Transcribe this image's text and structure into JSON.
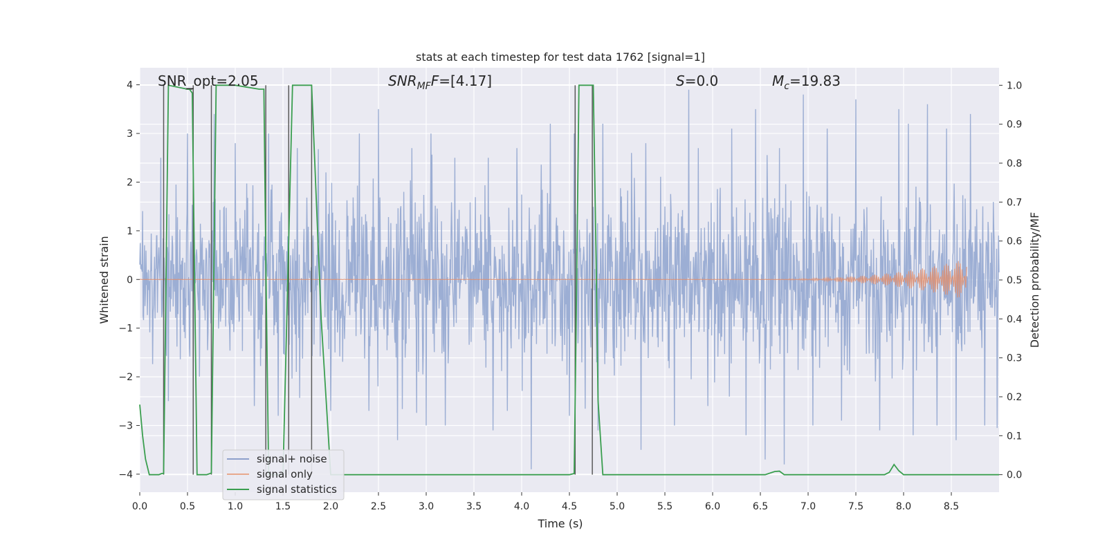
{
  "chart_data": {
    "type": "line",
    "title": "stats at each timestep for test data 1762 [signal=1]",
    "xlabel": "Time (s)",
    "ylabel_left": "Whitened strain",
    "ylabel_right": "Detection probability/MF",
    "xlim": [
      0.0,
      9.0
    ],
    "ylim_left": [
      -4.37,
      4.35
    ],
    "ylim_right": [
      -0.045,
      1.045
    ],
    "grid": true,
    "legend_position": "lower-left",
    "x_ticks": [
      0.0,
      0.5,
      1.0,
      1.5,
      2.0,
      2.5,
      3.0,
      3.5,
      4.0,
      4.5,
      5.0,
      5.5,
      6.0,
      6.5,
      7.0,
      7.5,
      8.0,
      8.5
    ],
    "x_tick_labels": [
      "0.0",
      "0.5",
      "1.0",
      "1.5",
      "2.0",
      "2.5",
      "3.0",
      "3.5",
      "4.0",
      "4.5",
      "5.0",
      "5.5",
      "6.0",
      "6.5",
      "7.0",
      "7.5",
      "8.0",
      "8.5"
    ],
    "y_left_ticks": [
      4,
      3,
      2,
      1,
      0,
      -1,
      -2,
      -3,
      -4
    ],
    "y_left_tick_labels": [
      "4",
      "3",
      "2",
      "1",
      "0",
      "−1",
      "−2",
      "−3",
      "−4"
    ],
    "y_right_ticks": [
      1.0,
      0.9,
      0.8,
      0.7,
      0.6,
      0.5,
      0.4,
      0.3,
      0.2,
      0.1,
      0.0
    ],
    "y_right_tick_labels": [
      "1.0",
      "0.9",
      "0.8",
      "0.7",
      "0.6",
      "0.5",
      "0.4",
      "0.3",
      "0.2",
      "0.1",
      "0.0"
    ],
    "annotations": {
      "snr_opt": "SNR_opt=2.05",
      "snr_mf_label": "SNR",
      "snr_mf_sub": "MF",
      "snr_mf_value": "=[4.17]",
      "s_label": "S",
      "s_value": "=0.0",
      "mc_label": "M",
      "mc_sub": "c",
      "mc_value": "=19.83"
    },
    "legend": [
      {
        "label": "signal+ noise",
        "color": "#8da0cb"
      },
      {
        "label": "signal only",
        "color": "#e8a88c"
      },
      {
        "label": "signal statistics",
        "color": "#3a9e4f"
      }
    ],
    "series": [
      {
        "name": "signal+ noise",
        "axis": "left",
        "color": "#98abd2",
        "noise_std": 0.85,
        "peaks_up": [
          [
            0.22,
            2.5
          ],
          [
            0.5,
            3.0
          ],
          [
            0.78,
            3.4
          ],
          [
            1.0,
            2.8
          ],
          [
            1.35,
            3.0
          ],
          [
            1.65,
            2.7
          ],
          [
            1.95,
            2.2
          ],
          [
            2.3,
            3.0
          ],
          [
            2.5,
            3.5
          ],
          [
            2.85,
            2.7
          ],
          [
            3.05,
            3.0
          ],
          [
            3.3,
            2.5
          ],
          [
            3.65,
            2.5
          ],
          [
            3.95,
            2.7
          ],
          [
            4.3,
            3.2
          ],
          [
            4.55,
            3.0
          ],
          [
            4.85,
            3.2
          ],
          [
            5.15,
            2.6
          ],
          [
            5.3,
            2.8
          ],
          [
            5.75,
            3.9
          ],
          [
            5.85,
            2.7
          ],
          [
            6.2,
            3.1
          ],
          [
            6.45,
            3.5
          ],
          [
            6.7,
            2.7
          ],
          [
            6.95,
            3.8
          ],
          [
            7.2,
            3.1
          ],
          [
            7.5,
            3.7
          ],
          [
            7.95,
            3.5
          ],
          [
            8.05,
            3.2
          ],
          [
            8.25,
            3.6
          ],
          [
            8.45,
            3.1
          ],
          [
            8.7,
            3.4
          ],
          [
            8.85,
            2.9
          ]
        ],
        "peaks_down": [
          [
            0.3,
            -2.5
          ],
          [
            1.2,
            -2.6
          ],
          [
            1.45,
            -2.8
          ],
          [
            2.0,
            -2.7
          ],
          [
            2.4,
            -2.7
          ],
          [
            2.7,
            -3.3
          ],
          [
            3.0,
            -3.0
          ],
          [
            3.2,
            -3.0
          ],
          [
            3.7,
            -3.1
          ],
          [
            3.85,
            -2.7
          ],
          [
            4.1,
            -3.9
          ],
          [
            4.5,
            -2.8
          ],
          [
            4.8,
            -3.1
          ],
          [
            5.25,
            -3.5
          ],
          [
            5.6,
            -3.0
          ],
          [
            5.95,
            -2.6
          ],
          [
            6.35,
            -3.2
          ],
          [
            6.55,
            -3.7
          ],
          [
            6.75,
            -3.8
          ],
          [
            7.05,
            -3.0
          ],
          [
            7.35,
            -2.9
          ],
          [
            7.75,
            -3.1
          ],
          [
            8.1,
            -3.2
          ],
          [
            8.35,
            -3.0
          ],
          [
            8.55,
            -3.3
          ],
          [
            8.85,
            -3.0
          ],
          [
            8.98,
            -3.05
          ]
        ]
      },
      {
        "name": "signal only",
        "axis": "left",
        "color": "#e08e6d",
        "chirp_start": 6.0,
        "chirp_end": 8.66,
        "max_amplitude": 0.42
      },
      {
        "name": "signal statistics",
        "axis": "right",
        "color": "#3a9e4f",
        "x": [
          0.0,
          0.03,
          0.06,
          0.1,
          0.2,
          0.23,
          0.25,
          0.3,
          0.5,
          0.52,
          0.55,
          0.6,
          0.62,
          0.7,
          0.75,
          0.8,
          0.85,
          1.0,
          1.25,
          1.3,
          1.32,
          1.35,
          1.5,
          1.6,
          1.7,
          1.8,
          1.9,
          2.0,
          2.5,
          3.0,
          4.0,
          4.5,
          4.55,
          4.57,
          4.6,
          4.75,
          4.78,
          4.8,
          4.85,
          5.0,
          6.0,
          6.55,
          6.65,
          6.7,
          6.75,
          7.0,
          7.5,
          7.8,
          7.85,
          7.9,
          7.95,
          8.0,
          8.5,
          9.0
        ],
        "y": [
          0.18,
          0.1,
          0.04,
          0.0,
          0.0,
          0.003,
          0.003,
          1.0,
          0.99,
          0.99,
          0.98,
          0.0,
          0.0,
          0.0,
          0.004,
          1.0,
          1.0,
          1.0,
          0.99,
          0.99,
          0.55,
          0.0,
          0.0,
          1.0,
          1.0,
          1.0,
          0.4,
          0.0,
          0.0,
          0.0,
          0.0,
          0.0,
          0.003,
          0.38,
          1.0,
          1.0,
          0.55,
          0.19,
          0.0,
          0.0,
          0.0,
          0.0,
          0.008,
          0.009,
          0.0,
          0.0,
          0.0,
          0.0,
          0.006,
          0.026,
          0.01,
          0.0,
          0.0,
          0.0
        ]
      }
    ],
    "vertical_markers": [
      0.25,
      0.56,
      0.75,
      1.32,
      1.56,
      1.8,
      4.56,
      4.74
    ],
    "hbar_markers": [
      [
        0.48,
        0.55,
        0.99
      ]
    ]
  }
}
